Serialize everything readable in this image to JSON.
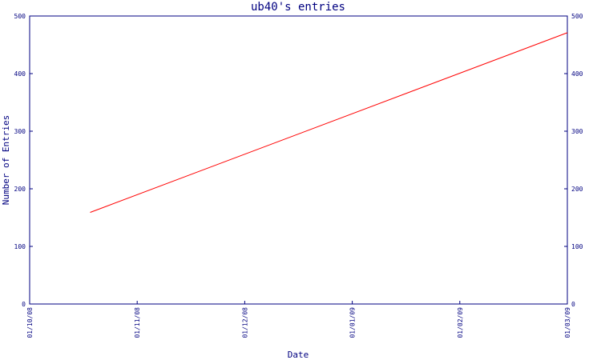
{
  "chart_data": {
    "type": "line",
    "title": "ub40's entries",
    "xlabel": "Date",
    "ylabel": "Number of Entries",
    "x_ticks": [
      "01/10/08",
      "01/11/08",
      "01/12/08",
      "01/01/09",
      "01/02/09",
      "01/03/09"
    ],
    "y_ticks": [
      "0",
      "100",
      "200",
      "300",
      "400",
      "500"
    ],
    "xlim": [
      "2008-10-01",
      "2009-03-01"
    ],
    "ylim": [
      0,
      500
    ],
    "grid": false,
    "series": [
      {
        "color": "#ff0000",
        "points": [
          {
            "x": "2008-10-18",
            "y": 159
          },
          {
            "x": "2009-03-01",
            "y": 471
          }
        ]
      }
    ]
  },
  "colors": {
    "axis": "#000080",
    "text": "#000080",
    "line": "#ff0000",
    "background": "#ffffff"
  }
}
